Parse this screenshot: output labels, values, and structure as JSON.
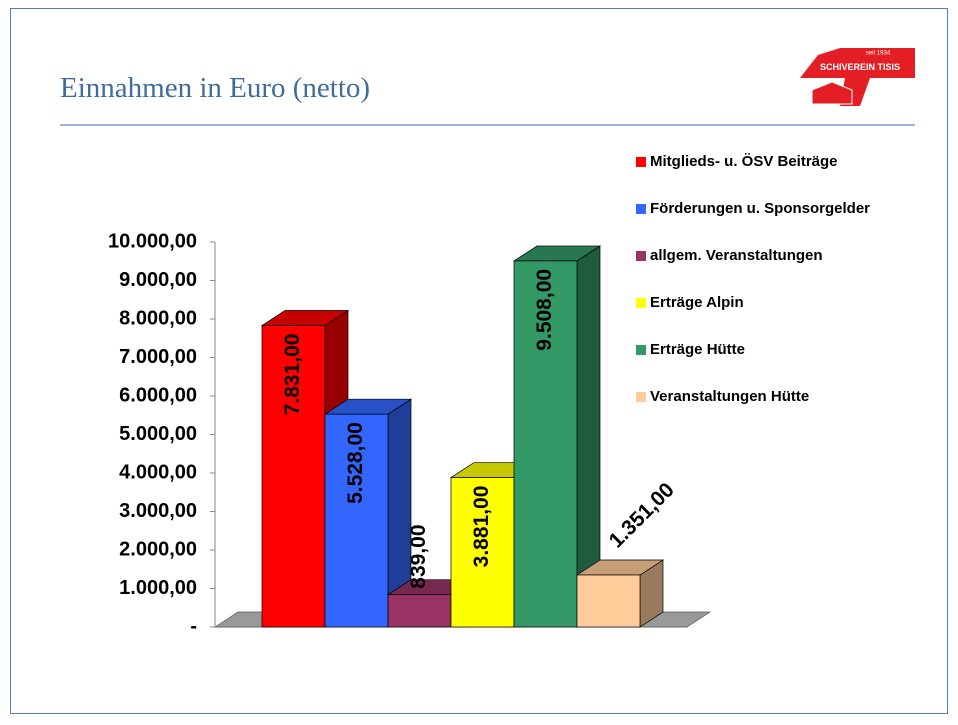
{
  "chart_data": {
    "type": "bar3d",
    "title": "Einnahmen in Euro (netto)",
    "logo": {
      "small": "seit 1934",
      "name": "SCHIVEREIN TISIS"
    },
    "series": [
      {
        "name": "Mitglieds- u. ÖSV Beiträge",
        "color": "#ff0000",
        "values": [
          7831
        ],
        "value_labels": [
          "7.831,00"
        ]
      },
      {
        "name": "Förderungen u. Sponsorgelder",
        "color": "#3366ff",
        "values": [
          5528
        ],
        "value_labels": [
          "5.528,00"
        ]
      },
      {
        "name": "allgem. Veranstaltungen",
        "color": "#993366",
        "values": [
          839
        ],
        "value_labels": [
          "839,00"
        ]
      },
      {
        "name": "Erträge Alpin",
        "color": "#ffff00",
        "values": [
          3881
        ],
        "value_labels": [
          "3.881,00"
        ]
      },
      {
        "name": "Erträge Hütte",
        "color": "#339966",
        "values": [
          9508
        ],
        "value_labels": [
          "9.508,00"
        ]
      },
      {
        "name": "Veranstaltungen Hütte",
        "color": "#ffcc99",
        "values": [
          1351
        ],
        "value_labels": [
          "1.351,00"
        ]
      }
    ],
    "ylim": [
      0,
      10000
    ],
    "yticks": [
      {
        "value": 0,
        "label": "-"
      },
      {
        "value": 1000,
        "label": "1.000,00"
      },
      {
        "value": 2000,
        "label": "2.000,00"
      },
      {
        "value": 3000,
        "label": "3.000,00"
      },
      {
        "value": 4000,
        "label": "4.000,00"
      },
      {
        "value": 5000,
        "label": "5.000,00"
      },
      {
        "value": 6000,
        "label": "6.000,00"
      },
      {
        "value": 7000,
        "label": "7.000,00"
      },
      {
        "value": 8000,
        "label": "8.000,00"
      },
      {
        "value": 9000,
        "label": "9.000,00"
      },
      {
        "value": 10000,
        "label": "10.000,00"
      }
    ],
    "legend": "right"
  }
}
